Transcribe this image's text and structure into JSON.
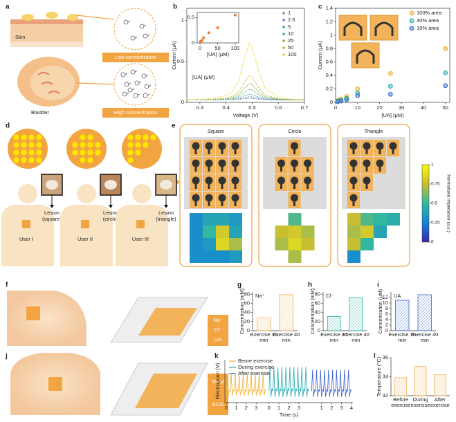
{
  "panel_labels": [
    "a",
    "b",
    "c",
    "d",
    "e",
    "f",
    "g",
    "h",
    "i",
    "j",
    "k",
    "l"
  ],
  "a": {
    "skin": "Skin",
    "low": "Low concentration",
    "bladder": "Bladder",
    "high": "High concentration"
  },
  "d": {
    "users": [
      "User I",
      "User II",
      "User III"
    ],
    "lesions": [
      [
        "Lesion",
        "(square)"
      ],
      [
        "Lesion",
        "(circle)"
      ],
      [
        "Lesion",
        "(triangle)"
      ]
    ]
  },
  "f": {
    "labels": [
      "Na⁺",
      "Cl⁻",
      "UA"
    ]
  },
  "j": {
    "labels": [
      "Temp",
      "ECG"
    ]
  },
  "chart_data": [
    {
      "type": "line",
      "xlabel": "Voltage (V)",
      "ylabel": "Current (μA)",
      "legend_title": "[UA] (μM)",
      "legend": "upper right",
      "x": [
        0.25,
        0.3,
        0.35,
        0.4,
        0.425,
        0.45,
        0.475,
        0.49,
        0.5,
        0.525,
        0.55,
        0.6,
        0.65,
        0.7
      ],
      "series": [
        {
          "name": "1",
          "color": "#8a7fae",
          "values": [
            0.03,
            0.03,
            0.031,
            0.032,
            0.033,
            0.037,
            0.046,
            0.05,
            0.048,
            0.04,
            0.034,
            0.031,
            0.03,
            0.03
          ]
        },
        {
          "name": "2.5",
          "color": "#5b7fb5",
          "values": [
            0.03,
            0.03,
            0.031,
            0.033,
            0.036,
            0.044,
            0.062,
            0.07,
            0.067,
            0.05,
            0.038,
            0.032,
            0.03,
            0.03
          ]
        },
        {
          "name": "5",
          "color": "#3a9aa8",
          "values": [
            0.03,
            0.031,
            0.032,
            0.036,
            0.041,
            0.055,
            0.086,
            0.1,
            0.094,
            0.065,
            0.044,
            0.034,
            0.031,
            0.03
          ]
        },
        {
          "name": "10",
          "color": "#4aa87a",
          "values": [
            0.03,
            0.031,
            0.034,
            0.04,
            0.05,
            0.076,
            0.134,
            0.16,
            0.15,
            0.095,
            0.056,
            0.037,
            0.031,
            0.03
          ]
        },
        {
          "name": "25",
          "color": "#8aa840",
          "values": [
            0.03,
            0.032,
            0.036,
            0.046,
            0.06,
            0.1,
            0.19,
            0.23,
            0.214,
            0.13,
            0.07,
            0.04,
            0.032,
            0.03
          ]
        },
        {
          "name": "50",
          "color": "#c8b030",
          "values": [
            0.03,
            0.033,
            0.039,
            0.054,
            0.075,
            0.135,
            0.27,
            0.33,
            0.306,
            0.18,
            0.09,
            0.045,
            0.033,
            0.03
          ]
        },
        {
          "name": "100",
          "color": "#f0d020",
          "values": [
            0.03,
            0.037,
            0.051,
            0.086,
            0.135,
            0.275,
            0.59,
            0.73,
            0.674,
            0.38,
            0.17,
            0.065,
            0.037,
            0.03
          ]
        }
      ],
      "xlim": [
        0.25,
        0.7
      ],
      "xticks": [
        0.3,
        0.4,
        0.5,
        0.6,
        0.7
      ],
      "ylim": [
        0,
        1.15
      ],
      "yticks": [
        0,
        0.5,
        1
      ],
      "inset": {
        "type": "scatter",
        "xlabel": "[UA] (μM)",
        "color": "#e87a30",
        "x": [
          1,
          2.5,
          5,
          10,
          25,
          50,
          100
        ],
        "values": [
          0.02,
          0.03,
          0.05,
          0.1,
          0.2,
          0.3,
          0.55
        ],
        "xlim": [
          -8,
          110
        ],
        "xticks": [
          0,
          50,
          100
        ],
        "ylim": [
          0,
          0.6
        ],
        "yticks": [
          0,
          0.5
        ]
      }
    },
    {
      "type": "scatter",
      "xlabel": "[UA] (μM)",
      "ylabel": "Current (μA)",
      "legend": "upper right",
      "x": [
        1,
        2.5,
        5,
        10,
        25,
        50
      ],
      "series": [
        {
          "name": "100% area",
          "color": "#f0b030",
          "values": [
            0.03,
            0.05,
            0.09,
            0.2,
            0.43,
            0.8
          ]
        },
        {
          "name": "40% area",
          "color": "#2ab0a8",
          "values": [
            0.02,
            0.03,
            0.06,
            0.14,
            0.24,
            0.44
          ]
        },
        {
          "name": "15% area",
          "color": "#3a70d0",
          "values": [
            0.01,
            0.02,
            0.04,
            0.1,
            0.12,
            0.25
          ]
        }
      ],
      "xlim": [
        0,
        52
      ],
      "xticks": [
        0,
        10,
        20,
        30,
        40,
        50
      ],
      "ylim": [
        0,
        1.4
      ],
      "yticks": [
        0,
        0.2,
        0.4,
        0.6,
        0.8,
        1,
        1.2,
        1.4
      ]
    },
    {
      "type": "heatmap",
      "titles": [
        "Square",
        "Circle",
        "Triangle"
      ],
      "colorbar_label": "Normalized impedance (a.u.)",
      "colormap": "parula",
      "clim": [
        0,
        1
      ],
      "cticks": [
        0,
        0.25,
        0.5,
        0.75,
        1
      ],
      "grids": [
        [
          [
            0.3,
            0.4,
            0.4,
            0.35
          ],
          [
            0.3,
            0.5,
            0.8,
            0.4
          ],
          [
            0.3,
            0.35,
            0.85,
            0.7
          ],
          [
            0.3,
            0.3,
            0.3,
            0.35
          ]
        ],
        [
          [
            null,
            0.55,
            null
          ],
          [
            0.75,
            0.8,
            0.7
          ],
          [
            0.7,
            0.85,
            0.75
          ],
          [
            null,
            0.7,
            null
          ]
        ],
        [
          [
            0.75,
            0.55,
            0.5,
            0.45
          ],
          [
            0.7,
            0.8,
            0.4,
            null
          ],
          [
            0.75,
            0.5,
            null,
            null
          ],
          [
            0.3,
            null,
            null,
            null
          ]
        ]
      ]
    },
    {
      "type": "bar",
      "label": "Na⁺",
      "ylabel": "Concentration (mM)",
      "categories": [
        "Exercise 10 min",
        "Exercise 40 min"
      ],
      "values": [
        28,
        79
      ],
      "color": "#f0b050",
      "hatch": true,
      "ylim": [
        0,
        85
      ],
      "yticks": [
        0,
        20,
        40,
        60,
        80
      ]
    },
    {
      "type": "bar",
      "label": "Cl⁻",
      "ylabel": "Concentration (mM)",
      "categories": [
        "Exercise 10 min",
        "Exercise 40 min"
      ],
      "values": [
        31,
        72
      ],
      "color": "#2ab0a8",
      "hatch": true,
      "ylim": [
        0,
        85
      ],
      "yticks": [
        0,
        20,
        40,
        60,
        80
      ]
    },
    {
      "type": "bar",
      "label": "UA",
      "ylabel": "Concentration (μM)",
      "categories": [
        "Exercise 10 min",
        "Exercise 40 min"
      ],
      "values": [
        11,
        13
      ],
      "color": "#3a6ad0",
      "hatch": true,
      "ylim": [
        0,
        14
      ],
      "yticks": [
        0,
        2,
        4,
        6,
        8,
        10,
        12
      ]
    },
    {
      "type": "line",
      "ylabel": "Electrogram (V)",
      "xlabel": "Time (s)",
      "legend": "upper left",
      "segmented": true,
      "x": [
        0,
        0.1,
        0.2,
        0.3,
        0.4,
        0.5,
        0.6,
        0.7,
        0.8,
        0.9,
        1,
        1.1,
        1.2,
        1.3,
        1.4,
        1.5,
        1.6,
        1.7,
        1.8,
        1.9,
        2,
        2.1,
        2.2,
        2.3,
        2.4,
        2.5,
        2.6,
        2.7,
        2.8,
        2.9,
        3,
        3.1,
        3.2,
        3.3,
        3.4,
        3.5,
        3.6,
        3.7,
        3.8,
        3.9,
        4
      ],
      "series": [
        {
          "name": "Beore exercise",
          "color": "#f0b030",
          "values": [
            0,
            0.6,
            -0.15,
            0.05,
            0,
            0.6,
            -0.15,
            0.05,
            0,
            0.6,
            -0.15,
            0.05,
            0,
            0.6,
            -0.15,
            0.05,
            0,
            0.6,
            -0.15,
            0.05,
            0,
            0.6,
            -0.15,
            0.05,
            0,
            0.6,
            -0.15,
            0.05,
            0,
            0.6,
            -0.15,
            0.05,
            0,
            0.6,
            -0.15,
            0.05,
            0,
            0.6,
            -0.15,
            0.05,
            0
          ]
        },
        {
          "name": "During exercise",
          "color": "#20a8b0",
          "values": [
            0,
            0.85,
            -0.2,
            0.08,
            0,
            0.85,
            -0.2,
            0.08,
            0,
            0.85,
            -0.2,
            0.08,
            0,
            0.85,
            -0.2,
            0.08,
            0,
            0.85,
            -0.2,
            0.08,
            0,
            0.85,
            -0.2,
            0.08,
            0,
            0.85,
            -0.2,
            0.08,
            0,
            0.85,
            -0.2,
            0.08,
            0,
            0.85,
            -0.2,
            0.08,
            0,
            0.85,
            -0.2,
            0.08,
            0
          ]
        },
        {
          "name": "After exercise",
          "color": "#3a60d0",
          "values": [
            0,
            0.75,
            -0.2,
            0.05,
            0,
            0.75,
            -0.2,
            0.05,
            0,
            0.75,
            -0.2,
            0.05,
            0,
            0.75,
            -0.2,
            0.05,
            0,
            0.75,
            -0.2,
            0.05,
            0,
            0.75,
            -0.2,
            0.05,
            0,
            0.75,
            -0.2,
            0.05,
            0,
            0.75,
            -0.2,
            0.05,
            0,
            0.75,
            -0.2,
            0.05,
            0,
            0.75,
            -0.2,
            0.05,
            0
          ]
        }
      ],
      "xlim": [
        0,
        4
      ],
      "xticks": [
        [
          0,
          1,
          2,
          3
        ],
        [
          0,
          1,
          2,
          3
        ],
        [
          1,
          2,
          3,
          4
        ]
      ],
      "ylim": [
        -0.4,
        1.1
      ]
    },
    {
      "type": "bar",
      "ylabel": "Temperature (°C)",
      "categories": [
        "Before exercise",
        "During exercise",
        "After exercise"
      ],
      "values": [
        33.9,
        35.1,
        34.2
      ],
      "color": "#f0b050",
      "hatch": true,
      "ylim": [
        32,
        36
      ],
      "yticks": [
        32,
        34,
        36
      ]
    }
  ]
}
